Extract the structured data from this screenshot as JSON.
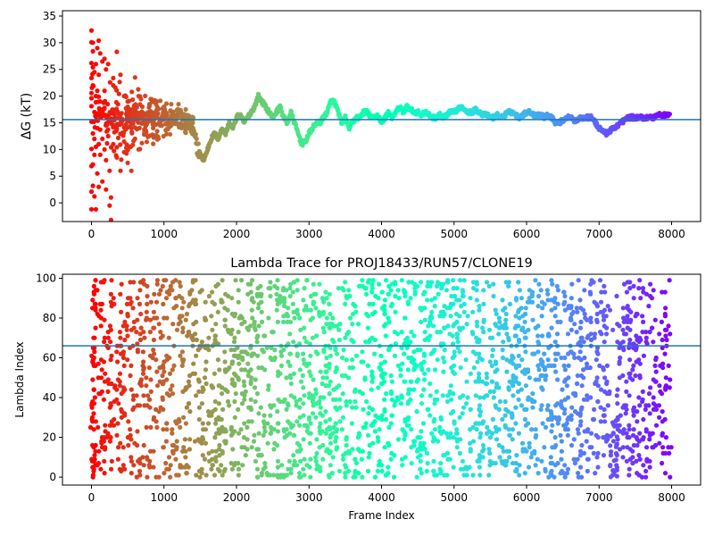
{
  "colors": {
    "refline": "#1f77b4",
    "palette": "rainbow",
    "axes": "#000000"
  },
  "chart_data": [
    {
      "type": "scatter",
      "title": "",
      "xlabel": "",
      "ylabel": "ΔG (kT)",
      "xlim": [
        -400,
        8400
      ],
      "ylim": [
        -3.5,
        36
      ],
      "xticks": [
        0,
        1000,
        2000,
        3000,
        4000,
        5000,
        6000,
        7000,
        8000
      ],
      "yticks": [
        0,
        5,
        10,
        15,
        20,
        25,
        30,
        35
      ],
      "hline": 15.6,
      "color_by": "frame index (rainbow, red at 0 to violet at 8000)",
      "grid": false,
      "trace": [
        [
          0,
          22
        ],
        [
          20,
          25
        ],
        [
          40,
          12
        ],
        [
          60,
          18
        ],
        [
          80,
          15
        ],
        [
          100,
          20
        ],
        [
          120,
          14
        ],
        [
          150,
          17
        ],
        [
          180,
          19
        ],
        [
          210,
          14
        ],
        [
          240,
          16
        ],
        [
          270,
          15
        ],
        [
          300,
          17
        ],
        [
          350,
          14
        ],
        [
          400,
          16
        ],
        [
          450,
          13
        ],
        [
          500,
          17
        ],
        [
          550,
          14
        ],
        [
          600,
          18
        ],
        [
          650,
          15
        ],
        [
          700,
          16
        ],
        [
          750,
          14
        ],
        [
          800,
          17
        ],
        [
          850,
          15
        ],
        [
          900,
          18
        ],
        [
          950,
          15
        ],
        [
          1000,
          17
        ],
        [
          1050,
          15
        ],
        [
          1100,
          17
        ],
        [
          1150,
          16
        ],
        [
          1200,
          17
        ],
        [
          1250,
          15
        ],
        [
          1300,
          14
        ],
        [
          1350,
          15
        ],
        [
          1400,
          13
        ],
        [
          1450,
          11
        ],
        [
          1500,
          9
        ],
        [
          1550,
          8
        ],
        [
          1600,
          10
        ],
        [
          1650,
          12
        ],
        [
          1700,
          13
        ],
        [
          1750,
          12
        ],
        [
          1800,
          14
        ],
        [
          1850,
          13
        ],
        [
          1900,
          15
        ],
        [
          1950,
          14
        ],
        [
          2000,
          16
        ],
        [
          2050,
          16.5
        ],
        [
          2100,
          15
        ],
        [
          2150,
          16
        ],
        [
          2200,
          17
        ],
        [
          2250,
          18
        ],
        [
          2300,
          20
        ],
        [
          2350,
          19
        ],
        [
          2400,
          18
        ],
        [
          2450,
          17
        ],
        [
          2500,
          16
        ],
        [
          2550,
          17
        ],
        [
          2600,
          18
        ],
        [
          2650,
          16
        ],
        [
          2700,
          15
        ],
        [
          2750,
          17
        ],
        [
          2800,
          15
        ],
        [
          2850,
          13
        ],
        [
          2900,
          11
        ],
        [
          2950,
          11.5
        ],
        [
          3000,
          13
        ],
        [
          3050,
          14
        ],
        [
          3100,
          15
        ],
        [
          3150,
          15
        ],
        [
          3200,
          16
        ],
        [
          3250,
          17
        ],
        [
          3300,
          19
        ],
        [
          3350,
          19
        ],
        [
          3400,
          17
        ],
        [
          3450,
          15
        ],
        [
          3500,
          16
        ],
        [
          3550,
          14
        ],
        [
          3600,
          15
        ],
        [
          3650,
          16
        ],
        [
          3700,
          16
        ],
        [
          3750,
          17
        ],
        [
          3800,
          17
        ],
        [
          3850,
          16
        ],
        [
          3900,
          16
        ],
        [
          3950,
          16.5
        ],
        [
          4000,
          15
        ],
        [
          4050,
          16
        ],
        [
          4100,
          17
        ],
        [
          4150,
          16
        ],
        [
          4200,
          17
        ],
        [
          4250,
          18
        ],
        [
          4300,
          17
        ],
        [
          4350,
          18
        ],
        [
          4400,
          17.5
        ],
        [
          4450,
          17
        ],
        [
          4500,
          17
        ],
        [
          4550,
          16.5
        ],
        [
          4600,
          17
        ],
        [
          4650,
          16.5
        ],
        [
          4700,
          16
        ],
        [
          4750,
          16
        ],
        [
          4800,
          16.5
        ],
        [
          4850,
          16
        ],
        [
          4900,
          16.5
        ],
        [
          4950,
          17
        ],
        [
          5000,
          17
        ],
        [
          5050,
          17.5
        ],
        [
          5100,
          18
        ],
        [
          5150,
          17.5
        ],
        [
          5200,
          17
        ],
        [
          5250,
          17
        ],
        [
          5300,
          17.5
        ],
        [
          5350,
          17
        ],
        [
          5400,
          16.5
        ],
        [
          5450,
          16.5
        ],
        [
          5500,
          16
        ],
        [
          5550,
          16
        ],
        [
          5600,
          16.5
        ],
        [
          5650,
          16
        ],
        [
          5700,
          16.5
        ],
        [
          5750,
          17
        ],
        [
          5800,
          17
        ],
        [
          5850,
          16.5
        ],
        [
          5900,
          16
        ],
        [
          5950,
          16.5
        ],
        [
          6000,
          17
        ],
        [
          6050,
          17
        ],
        [
          6100,
          16.5
        ],
        [
          6150,
          16.5
        ],
        [
          6200,
          16.5
        ],
        [
          6250,
          16
        ],
        [
          6300,
          16.5
        ],
        [
          6350,
          16
        ],
        [
          6400,
          15
        ],
        [
          6450,
          15
        ],
        [
          6500,
          15.5
        ],
        [
          6550,
          16
        ],
        [
          6600,
          16
        ],
        [
          6650,
          15.5
        ],
        [
          6700,
          15.5
        ],
        [
          6750,
          16
        ],
        [
          6800,
          16
        ],
        [
          6850,
          16
        ],
        [
          6900,
          16
        ],
        [
          6950,
          15
        ],
        [
          7000,
          14
        ],
        [
          7050,
          13.5
        ],
        [
          7100,
          13
        ],
        [
          7150,
          13.5
        ],
        [
          7200,
          14
        ],
        [
          7250,
          14.5
        ],
        [
          7300,
          15
        ],
        [
          7350,
          15.5
        ],
        [
          7400,
          16
        ],
        [
          7450,
          16
        ],
        [
          7500,
          16
        ],
        [
          7550,
          16
        ],
        [
          7600,
          16
        ],
        [
          7650,
          16
        ],
        [
          7700,
          16
        ],
        [
          7750,
          16
        ],
        [
          7800,
          16.5
        ],
        [
          7850,
          16.5
        ],
        [
          7900,
          16.5
        ],
        [
          7950,
          16.5
        ],
        [
          7980,
          16.5
        ]
      ],
      "early_spread": [
        [
          0,
          32.3
        ],
        [
          0,
          30.1
        ],
        [
          0,
          26.2
        ],
        [
          0,
          23.4
        ],
        [
          0,
          19.6
        ],
        [
          0,
          18.1
        ],
        [
          0,
          15.2
        ],
        [
          0,
          10.1
        ],
        [
          0,
          6.9
        ],
        [
          0,
          2.1
        ],
        [
          0,
          -1.2
        ],
        [
          20,
          30.0
        ],
        [
          20,
          28.4
        ],
        [
          20,
          22.0
        ],
        [
          20,
          13.0
        ],
        [
          20,
          7.2
        ],
        [
          20,
          3.2
        ],
        [
          40,
          24.5
        ],
        [
          40,
          17.0
        ],
        [
          40,
          9.0
        ],
        [
          40,
          1.2
        ],
        [
          60,
          26.0
        ],
        [
          60,
          20.0
        ],
        [
          60,
          10.5
        ],
        [
          60,
          -1.2
        ],
        [
          80,
          29.0
        ],
        [
          80,
          21.0
        ],
        [
          80,
          14.0
        ],
        [
          80,
          5.5
        ],
        [
          100,
          30.4
        ],
        [
          100,
          24.0
        ],
        [
          100,
          11.0
        ],
        [
          100,
          3.0
        ],
        [
          120,
          28.0
        ],
        [
          120,
          19.0
        ],
        [
          120,
          9.0
        ],
        [
          150,
          26.5
        ],
        [
          150,
          12.0
        ],
        [
          150,
          4.0
        ],
        [
          180,
          27.0
        ],
        [
          180,
          21.0
        ],
        [
          180,
          10.0
        ],
        [
          200,
          25.0
        ],
        [
          200,
          8.0
        ],
        [
          200,
          2.5
        ],
        [
          230,
          26.0
        ],
        [
          230,
          12.5
        ],
        [
          250,
          6.0
        ],
        [
          250,
          -0.5
        ],
        [
          270,
          1.0
        ],
        [
          270,
          -3.2
        ],
        [
          300,
          22.0
        ],
        [
          300,
          11.0
        ],
        [
          350,
          28.3
        ],
        [
          350,
          8.5
        ],
        [
          400,
          24.0
        ],
        [
          400,
          6.0
        ],
        [
          450,
          20.0
        ],
        [
          450,
          9.5
        ],
        [
          500,
          19.0
        ],
        [
          500,
          7.5
        ],
        [
          550,
          14.0
        ],
        [
          550,
          6.0
        ],
        [
          600,
          23.5
        ],
        [
          600,
          12.0
        ],
        [
          650,
          20.0
        ],
        [
          650,
          10.0
        ],
        [
          700,
          18.0
        ],
        [
          750,
          15.5
        ],
        [
          800,
          18.5
        ],
        [
          850,
          14.0
        ],
        [
          900,
          19.0
        ],
        [
          950,
          14.5
        ],
        [
          1000,
          18.0
        ],
        [
          1100,
          18.5
        ],
        [
          1200,
          18.5
        ],
        [
          1300,
          17.5
        ],
        [
          1400,
          16.0
        ]
      ]
    },
    {
      "type": "scatter",
      "title": "Lambda Trace for PROJ18433/RUN57/CLONE19",
      "xlabel": "Frame Index",
      "ylabel": "Lambda Index",
      "xlim": [
        -400,
        8400
      ],
      "ylim": [
        -4,
        102
      ],
      "xticks": [
        0,
        1000,
        2000,
        3000,
        4000,
        5000,
        6000,
        7000,
        8000
      ],
      "yticks": [
        0,
        20,
        40,
        60,
        80,
        100
      ],
      "hline": 66,
      "lambda_range": [
        0,
        99
      ],
      "frame_range": [
        0,
        8000
      ],
      "color_by": "frame index (rainbow, red at 0 to violet at 8000)",
      "grid": false
    }
  ]
}
